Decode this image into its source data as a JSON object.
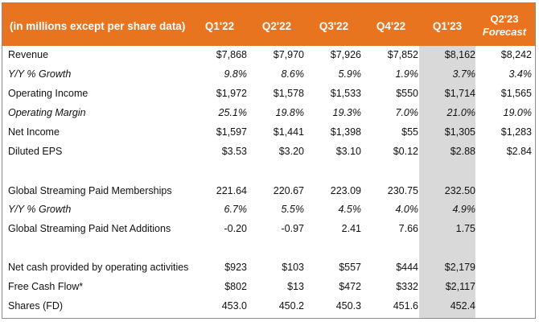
{
  "header": {
    "label": "(in millions except per share data)",
    "columns": [
      "Q1'22",
      "Q2'22",
      "Q3'22",
      "Q4'22",
      "Q1'23"
    ],
    "forecast_line1": "Q2'23",
    "forecast_line2": "Forecast"
  },
  "colors": {
    "header_bg": "#e8741f",
    "q1_highlight": "#d9d9d9"
  },
  "rows": [
    {
      "label": "Revenue",
      "italic": false,
      "values": [
        "$7,868",
        "$7,970",
        "$7,926",
        "$7,852",
        "$8,162",
        "$8,242"
      ]
    },
    {
      "label": "Y/Y % Growth",
      "italic": true,
      "values": [
        "9.8%",
        "8.6%",
        "5.9%",
        "1.9%",
        "3.7%",
        "3.4%"
      ]
    },
    {
      "label": "Operating Income",
      "italic": false,
      "values": [
        "$1,972",
        "$1,578",
        "$1,533",
        "$550",
        "$1,714",
        "$1,565"
      ]
    },
    {
      "label": "Operating Margin",
      "italic": true,
      "values": [
        "25.1%",
        "19.8%",
        "19.3%",
        "7.0%",
        "21.0%",
        "19.0%"
      ]
    },
    {
      "label": "Net Income",
      "italic": false,
      "values": [
        "$1,597",
        "$1,441",
        "$1,398",
        "$55",
        "$1,305",
        "$1,283"
      ]
    },
    {
      "label": "Diluted EPS",
      "italic": false,
      "values": [
        "$3.53",
        "$3.20",
        "$3.10",
        "$0.12",
        "$2.88",
        "$2.84"
      ]
    },
    {
      "label": "Global Streaming Paid Memberships",
      "italic": false,
      "values": [
        "221.64",
        "220.67",
        "223.09",
        "230.75",
        "232.50",
        ""
      ]
    },
    {
      "label": "Y/Y % Growth",
      "italic": true,
      "values": [
        "6.7%",
        "5.5%",
        "4.5%",
        "4.0%",
        "4.9%",
        ""
      ]
    },
    {
      "label": "Global Streaming Paid Net Additions",
      "italic": false,
      "values": [
        "-0.20",
        "-0.97",
        "2.41",
        "7.66",
        "1.75",
        ""
      ]
    },
    {
      "label": "Net cash provided by operating activities",
      "italic": false,
      "values": [
        "$923",
        "$103",
        "$557",
        "$444",
        "$2,179",
        ""
      ]
    },
    {
      "label": "Free Cash Flow*",
      "italic": false,
      "values": [
        "$802",
        "$13",
        "$472",
        "$332",
        "$2,117",
        ""
      ]
    },
    {
      "label": "Shares (FD)",
      "italic": false,
      "values": [
        "453.0",
        "450.2",
        "450.3",
        "451.6",
        "452.4",
        ""
      ]
    }
  ]
}
